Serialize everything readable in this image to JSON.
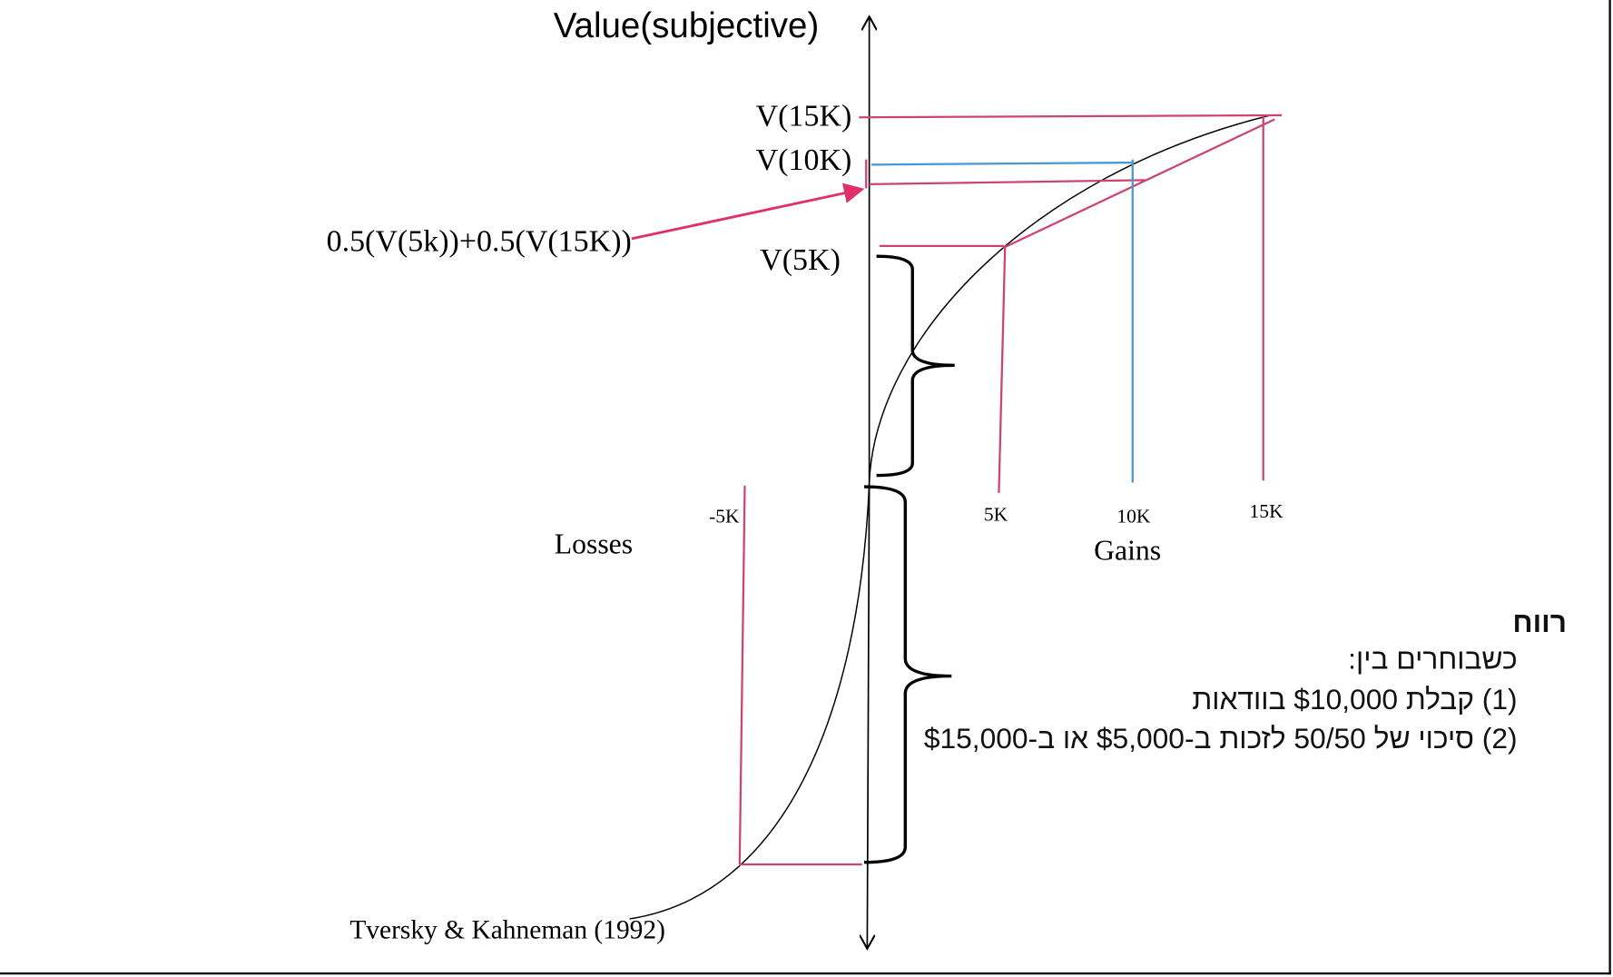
{
  "diagram": {
    "y_axis_title": "Value(subjective)",
    "labels": {
      "v15k": "V(15K)",
      "v10k": "V(10K)",
      "v5k": "V(5K)",
      "expected": "0.5(V(5k))+0.5(V(15K))",
      "tick_5k": "5K",
      "tick_10k": "10K",
      "tick_15k": "15K",
      "tick_neg5k": "-5K",
      "losses": "Losses",
      "gains": "Gains",
      "citation": "Tversky & Kahneman (1992)"
    },
    "colors": {
      "pink": "#cc4477",
      "blue": "#4a98d2",
      "arrow": "#e0306a",
      "curve": "#000000"
    }
  },
  "text_box": {
    "heading": "רווח",
    "intro": "כשבוחרים בין:",
    "option1": "(1) קבלת $10,000 בוודאות",
    "option2": "(2) סיכוי של 50/50 לזכות ב-$5,000 או ב-$15,000"
  }
}
